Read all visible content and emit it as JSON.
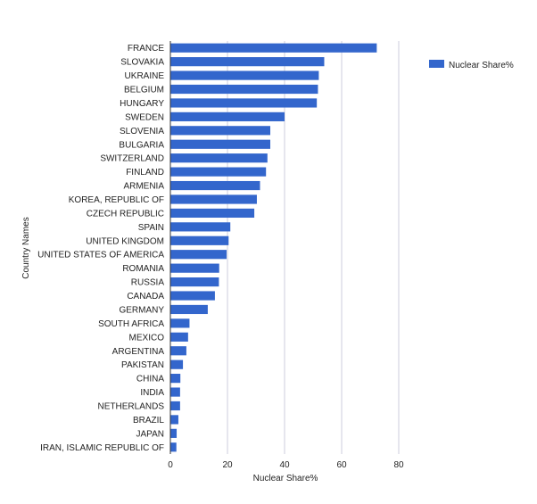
{
  "chart_data": {
    "type": "bar",
    "orientation": "horizontal",
    "categories": [
      "FRANCE",
      "SLOVAKIA",
      "UKRAINE",
      "BELGIUM",
      "HUNGARY",
      "SWEDEN",
      "SLOVENIA",
      "BULGARIA",
      "SWITZERLAND",
      "FINLAND",
      "ARMENIA",
      "KOREA, REPUBLIC OF",
      "CZECH REPUBLIC",
      "SPAIN",
      "UNITED KINGDOM",
      "UNITED STATES OF AMERICA",
      "ROMANIA",
      "RUSSIA",
      "CANADA",
      "GERMANY",
      "SOUTH AFRICA",
      "MEXICO",
      "ARGENTINA",
      "PAKISTAN",
      "CHINA",
      "INDIA",
      "NETHERLANDS",
      "BRAZIL",
      "JAPAN",
      "IRAN, ISLAMIC REPUBLIC OF"
    ],
    "series": [
      {
        "name": "Nuclear Share%",
        "color": "#3366cc",
        "values": [
          72.3,
          53.9,
          52.0,
          51.7,
          51.3,
          40.0,
          35.0,
          35.0,
          34.0,
          33.5,
          31.4,
          30.3,
          29.4,
          21.0,
          20.4,
          19.7,
          17.1,
          17.0,
          15.6,
          13.1,
          6.7,
          6.2,
          5.6,
          4.4,
          3.5,
          3.4,
          3.4,
          2.8,
          2.2,
          2.1
        ]
      }
    ],
    "xlabel": "Nuclear Share%",
    "ylabel": "Country Names",
    "xlim": [
      0,
      80
    ],
    "xticks": [
      0,
      20,
      40,
      60,
      80
    ],
    "grid": true,
    "legend": "right"
  }
}
